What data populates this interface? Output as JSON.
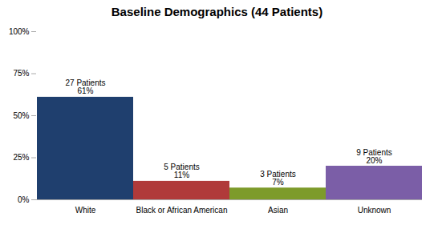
{
  "chart_data": {
    "type": "bar",
    "title": "Baseline Demographics (44 Patients)",
    "categories": [
      "White",
      "Black or African American",
      "Asian",
      "Unknown"
    ],
    "values": [
      61,
      11,
      7,
      20
    ],
    "annotations": [
      "27 Patients\n61%",
      "5 Patients\n11%",
      "3 Patients\n7%",
      "9 Patients\n20%"
    ],
    "colors": [
      "#1F3F6E",
      "#B03A3A",
      "#7D9B2A",
      "#7B5EA7"
    ],
    "ylim": [
      0,
      100
    ],
    "yticks": [
      {
        "value": 0,
        "label": "0%"
      },
      {
        "value": 25,
        "label": "25%"
      },
      {
        "value": 50,
        "label": "50%"
      },
      {
        "value": 75,
        "label": "75%"
      },
      {
        "value": 100,
        "label": "100%"
      }
    ],
    "grid": false
  }
}
